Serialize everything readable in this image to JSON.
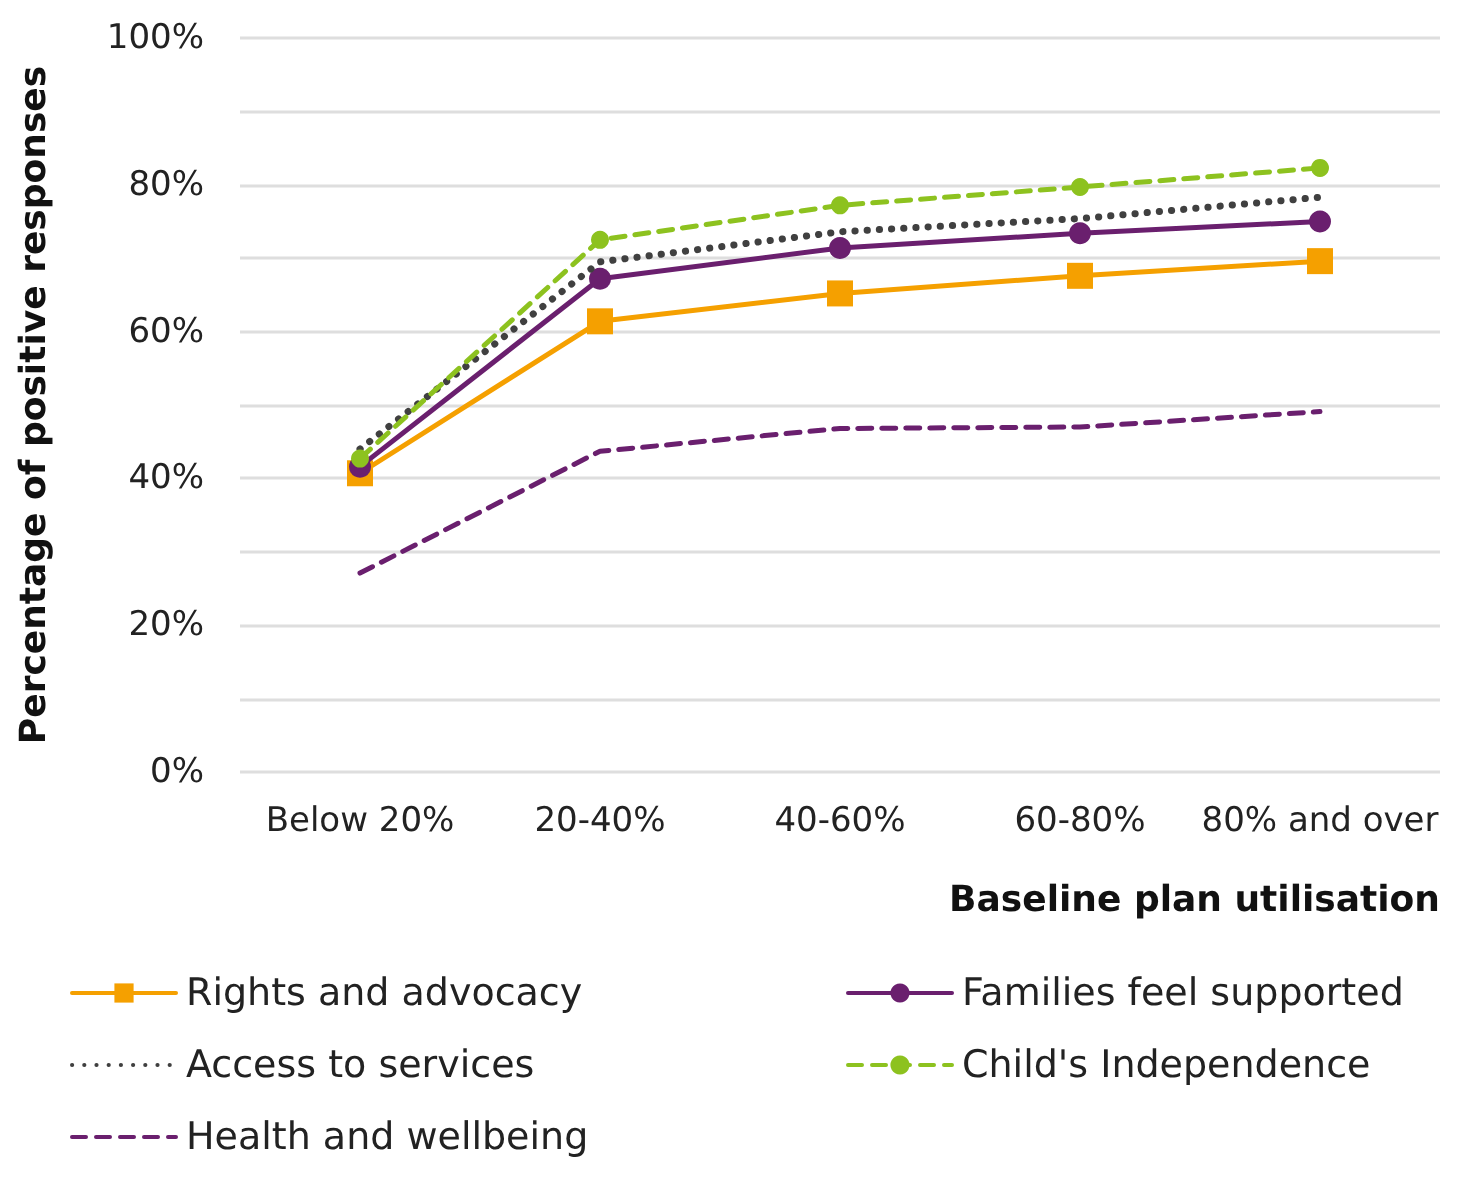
{
  "chart_data": {
    "type": "line",
    "xlabel": "Baseline plan utilisation",
    "ylabel": "Percentage of positive responses",
    "categories": [
      "Below 20%",
      "20-40%",
      "40-60%",
      "60-80%",
      "80% and over"
    ],
    "ylim": [
      0,
      100
    ],
    "yticks": [
      {
        "value": 0,
        "label": "0%"
      },
      {
        "value": 10,
        "label": null
      },
      {
        "value": 20,
        "label": "20%"
      },
      {
        "value": 30,
        "label": null
      },
      {
        "value": 40,
        "label": "40%"
      },
      {
        "value": 50,
        "label": null
      },
      {
        "value": 60,
        "label": "60%"
      },
      {
        "value": 70,
        "label": null
      },
      {
        "value": 80,
        "label": "80%"
      },
      {
        "value": 90,
        "label": null
      },
      {
        "value": 100,
        "label": "100%"
      }
    ],
    "grid": "y",
    "legend": "bottom",
    "series": [
      {
        "name": "Rights and advocacy",
        "color": "#f5a000",
        "marker": "square",
        "line_style": "solid",
        "values": [
          40.7,
          61.4,
          65.2,
          67.6,
          69.6
        ]
      },
      {
        "name": "Families feel supported",
        "color": "#6a1f6e",
        "marker": "circle",
        "line_style": "solid",
        "values": [
          41.6,
          67.2,
          71.4,
          73.4,
          75.0
        ]
      },
      {
        "name": "Access to services",
        "color": "#404040",
        "marker": "none",
        "line_style": "dotted",
        "values": [
          44,
          69.5,
          73.6,
          75.4,
          78.3
        ]
      },
      {
        "name": "Child's Independence",
        "color": "#8dc21f",
        "marker": "circle",
        "line_style": "dashed",
        "values": [
          42.7,
          72.5,
          77.2,
          79.7,
          82.3
        ]
      },
      {
        "name": "Health and wellbeing",
        "color": "#6a1f6e",
        "marker": "none",
        "line_style": "dashed",
        "values": [
          27.1,
          43.7,
          46.8,
          47.0,
          49.1
        ]
      }
    ]
  }
}
